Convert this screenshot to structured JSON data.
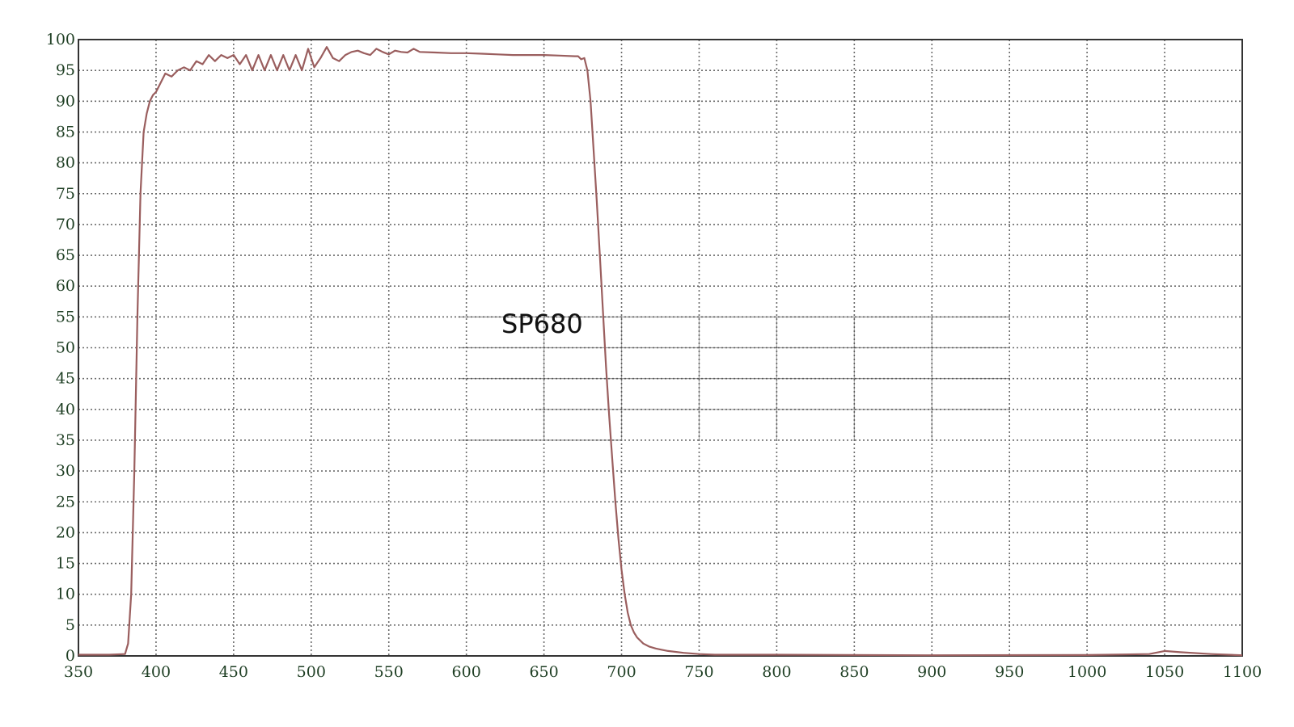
{
  "chart_data": {
    "type": "line",
    "title": "",
    "xlabel": "",
    "ylabel": "",
    "xlim": [
      350,
      1100
    ],
    "ylim": [
      0,
      100
    ],
    "grid": true,
    "x_ticks": [
      "350",
      "400",
      "450",
      "500",
      "550",
      "600",
      "650",
      "700",
      "750",
      "800",
      "850",
      "900",
      "950",
      "1000",
      "1050",
      "1100"
    ],
    "y_ticks": [
      "0",
      "5",
      "10",
      "15",
      "20",
      "25",
      "30",
      "35",
      "40",
      "45",
      "50",
      "55",
      "60",
      "65",
      "70",
      "75",
      "80",
      "85",
      "90",
      "95",
      "100"
    ],
    "annotation": "SP680",
    "line_color": "#9a5e5e",
    "series": [
      {
        "x": [
          350,
          370,
          380,
          382,
          384,
          386,
          388,
          390,
          392,
          394,
          396,
          398,
          400,
          403,
          406,
          410,
          414,
          418,
          422,
          426,
          430,
          434,
          438,
          442,
          446,
          450,
          454,
          458,
          462,
          466,
          470,
          474,
          478,
          482,
          486,
          490,
          494,
          498,
          502,
          506,
          510,
          514,
          518,
          522,
          526,
          530,
          534,
          538,
          542,
          546,
          550,
          554,
          558,
          562,
          566,
          570,
          580,
          590,
          600,
          610,
          620,
          630,
          640,
          650,
          660,
          670,
          672,
          674,
          676,
          678,
          680,
          682,
          684,
          686,
          688,
          690,
          692,
          694,
          696,
          698,
          700,
          702,
          704,
          706,
          708,
          710,
          714,
          718,
          722,
          726,
          730,
          740,
          750,
          760,
          800,
          900,
          1000,
          1040,
          1050,
          1060,
          1080,
          1100
        ],
        "y": [
          0.2,
          0.2,
          0.3,
          2,
          10,
          30,
          55,
          75,
          85,
          88,
          90,
          91,
          91.5,
          93,
          94.5,
          94,
          95,
          95.5,
          95,
          96.5,
          96,
          97.5,
          96.5,
          97.5,
          97,
          97.5,
          96,
          97.5,
          95,
          97.5,
          95,
          97.5,
          95,
          97.5,
          95,
          97.5,
          95,
          98.5,
          95.5,
          97,
          98.8,
          97,
          96.5,
          97.5,
          98,
          98.2,
          97.8,
          97.5,
          98.5,
          98,
          97.6,
          98.2,
          98,
          97.9,
          98.5,
          98,
          97.9,
          97.8,
          97.8,
          97.7,
          97.6,
          97.5,
          97.5,
          97.5,
          97.4,
          97.3,
          97.3,
          96.8,
          97,
          95,
          90,
          82,
          74,
          65,
          56,
          47,
          39,
          32,
          25,
          19,
          14,
          10,
          7,
          5,
          3.8,
          3,
          2,
          1.5,
          1.2,
          1,
          0.8,
          0.5,
          0.3,
          0.2,
          0.2,
          0.1,
          0.15,
          0.3,
          0.8,
          0.6,
          0.3,
          0.1
        ]
      }
    ]
  }
}
